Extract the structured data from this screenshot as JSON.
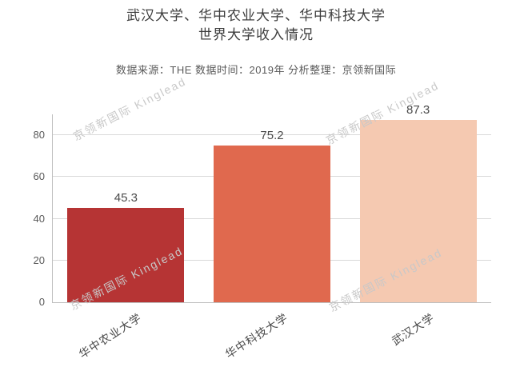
{
  "chart": {
    "title_line1": "武汉大学、华中农业大学、华中科技大学",
    "title_line2": "世界大学收入情况",
    "subtitle": "数据来源：THE  数据时间：2019年  分析整理：京领新国际",
    "watermark": "京领新国际 Kinglead"
  },
  "chart_data": {
    "type": "bar",
    "title": "武汉大学、华中农业大学、华中科技大学 世界大学收入情况",
    "subtitle": "数据来源：THE 数据时间：2019年 分析整理：京领新国际",
    "categories": [
      "华中农业大学",
      "华中科技大学",
      "武汉大学"
    ],
    "values": [
      45.3,
      75.2,
      87.3
    ],
    "value_labels": [
      "45.3",
      "75.2",
      "87.3"
    ],
    "bar_colors": [
      "#b63434",
      "#e0694e",
      "#f5c9b1"
    ],
    "xlabel": "",
    "ylabel": "",
    "yticks": [
      0,
      20,
      40,
      60,
      80
    ],
    "ylim": [
      0,
      90
    ],
    "grid": true,
    "legend_position": "none",
    "watermark_text": "京领新国际 Kinglead",
    "colors": {
      "title_text": "#3d3d3d",
      "subtitle_text": "#5a5a5a",
      "axis_line": "#bfbfbf",
      "gridline": "#d9d9d9",
      "tick_text": "#595959",
      "watermark": "#c8c8c8",
      "background": "#ffffff"
    }
  }
}
